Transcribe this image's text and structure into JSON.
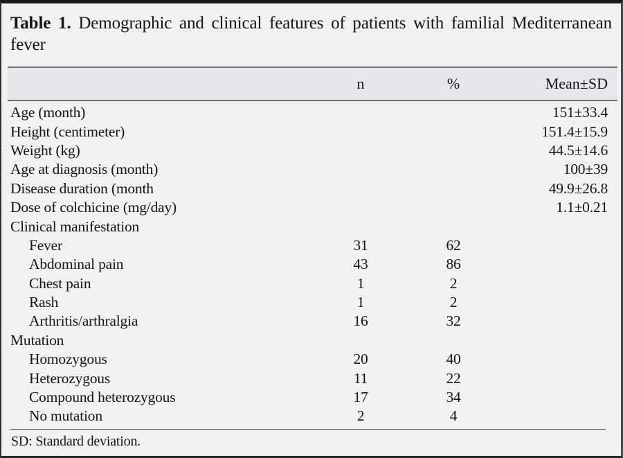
{
  "table": {
    "title_label": "Table 1.",
    "title_text": "Demographic and clinical features of patients with familial Mediterranean fever",
    "columns": {
      "label": "",
      "n": "n",
      "percent": "%",
      "mean_sd": "Mean±SD"
    },
    "rows": [
      {
        "label": "Age (month)",
        "n": "",
        "percent": "",
        "mean_sd": "151±33.4",
        "indent": false
      },
      {
        "label": "Height (centimeter)",
        "n": "",
        "percent": "",
        "mean_sd": "151.4±15.9",
        "indent": false
      },
      {
        "label": "Weight (kg)",
        "n": "",
        "percent": "",
        "mean_sd": "44.5±14.6",
        "indent": false
      },
      {
        "label": "Age at diagnosis (month)",
        "n": "",
        "percent": "",
        "mean_sd": "100±39",
        "indent": false
      },
      {
        "label": "Disease duration (month",
        "n": "",
        "percent": "",
        "mean_sd": "49.9±26.8",
        "indent": false
      },
      {
        "label": "Dose of colchicine (mg/day)",
        "n": "",
        "percent": "",
        "mean_sd": "1.1±0.21",
        "indent": false
      },
      {
        "label": "Clinical manifestation",
        "n": "",
        "percent": "",
        "mean_sd": "",
        "indent": false
      },
      {
        "label": "Fever",
        "n": "31",
        "percent": "62",
        "mean_sd": "",
        "indent": true
      },
      {
        "label": "Abdominal pain",
        "n": "43",
        "percent": "86",
        "mean_sd": "",
        "indent": true
      },
      {
        "label": "Chest pain",
        "n": "1",
        "percent": "2",
        "mean_sd": "",
        "indent": true
      },
      {
        "label": "Rash",
        "n": "1",
        "percent": "2",
        "mean_sd": "",
        "indent": true
      },
      {
        "label": "Arthritis/arthralgia",
        "n": "16",
        "percent": "32",
        "mean_sd": "",
        "indent": true
      },
      {
        "label": "Mutation",
        "n": "",
        "percent": "",
        "mean_sd": "",
        "indent": false
      },
      {
        "label": "Homozygous",
        "n": "20",
        "percent": "40",
        "mean_sd": "",
        "indent": true
      },
      {
        "label": "Heterozygous",
        "n": "11",
        "percent": "22",
        "mean_sd": "",
        "indent": true
      },
      {
        "label": "Compound heterozygous",
        "n": "17",
        "percent": "34",
        "mean_sd": "",
        "indent": true
      },
      {
        "label": "No mutation",
        "n": "2",
        "percent": "4",
        "mean_sd": "",
        "indent": true
      }
    ],
    "footnote": "SD: Standard deviation."
  },
  "colors": {
    "background": "#f2f1f1",
    "header_band": "#e7e6e8",
    "rule_dark": "#6e6e6e",
    "outer_border": "#1c1c1c",
    "text": "#141414"
  }
}
